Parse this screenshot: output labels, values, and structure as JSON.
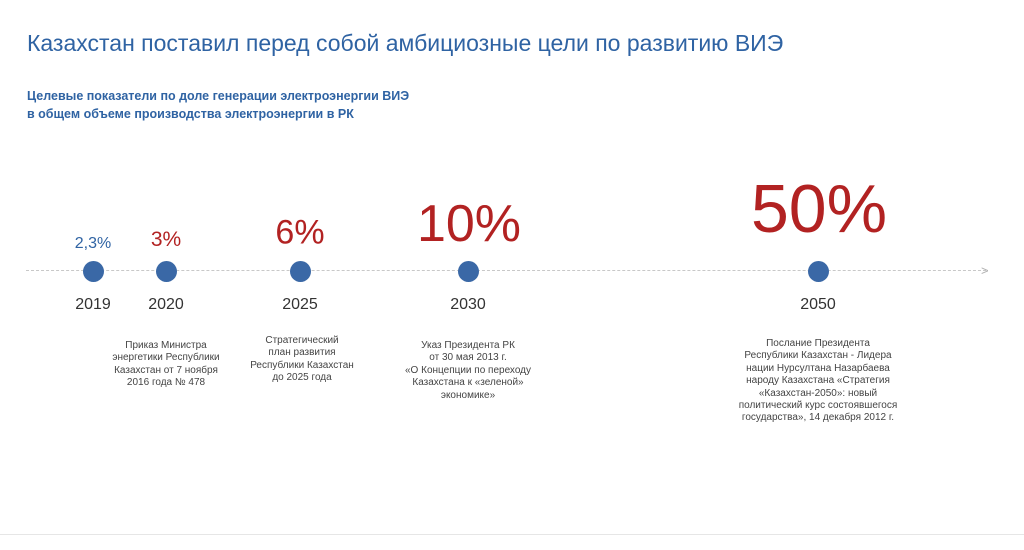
{
  "title": "Казахстан поставил перед собой амбициозные цели по развитию ВИЭ",
  "subtitle": [
    "Целевые показатели по доле генерации электроэнергии ВИЭ",
    "в общем объеме производства электроэнергии в РК"
  ],
  "colors": {
    "blue": "#2f63a3",
    "red": "#b22222",
    "dot": "#3a68a6"
  },
  "milestones": [
    {
      "year": "2019",
      "value": "2,3%",
      "desc": []
    },
    {
      "year": "2020",
      "value": "3%",
      "desc": [
        "Приказ Министра",
        "энергетики Республики",
        "Казахстан от 7 ноября",
        "2016 года № 478"
      ]
    },
    {
      "year": "2025",
      "value": "6%",
      "desc": [
        "Стратегический",
        "план развития",
        "Республики Казахстан",
        "до 2025 года"
      ]
    },
    {
      "year": "2030",
      "value": "10%",
      "desc": [
        "Указ Президента РК",
        "от 30 мая 2013 г.",
        "«О Концепции по переходу",
        "Казахстана к «зеленой»",
        "экономике»"
      ]
    },
    {
      "year": "2050",
      "value": "50%",
      "desc": [
        "Послание Президента",
        "Республики Казахстан - Лидера",
        "нации Нурсултана Назарбаева",
        "народу Казахстана «Стратегия",
        "«Казахстан-2050»: новый",
        "политический курс состоявшегося",
        "государства», 14 декабря 2012 г."
      ]
    }
  ]
}
